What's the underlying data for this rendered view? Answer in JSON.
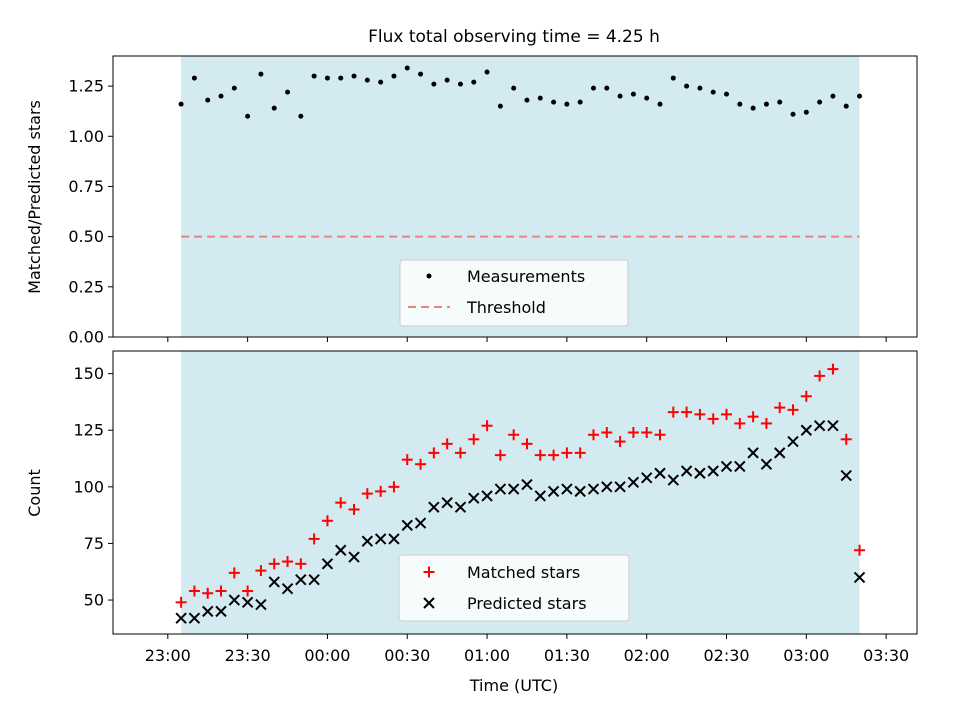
{
  "figure": {
    "title": "Flux total observing time = 4.25 h",
    "xlabel": "Time (UTC)"
  },
  "colors": {
    "shade": "#d3eaf1",
    "threshold": "#f08080",
    "matched": "#ff0000",
    "predicted": "#000000",
    "measurement": "#000000"
  },
  "x_axis": {
    "start_minutes_from_2300": -20.6,
    "end_minutes_from_2300": 281.6,
    "tick_labels": [
      "23:00",
      "23:30",
      "00:00",
      "00:30",
      "01:00",
      "01:30",
      "02:00",
      "02:30",
      "03:00",
      "03:30"
    ]
  },
  "shaded_interval": [
    "23:05",
    "03:20"
  ],
  "chart_data": [
    {
      "type": "scatter",
      "ylabel": "Matched/Predicted stars",
      "ylim": [
        0,
        1.4
      ],
      "yticks": [
        "0.00",
        "0.25",
        "0.50",
        "0.75",
        "1.00",
        "1.25"
      ],
      "legend": {
        "placement": "lower center",
        "entries": [
          "Measurements",
          "Threshold"
        ]
      },
      "threshold": 0.5,
      "threshold_range": [
        "23:05",
        "03:20"
      ],
      "series": [
        {
          "name": "Measurements",
          "x": [
            "23:05",
            "23:10",
            "23:15",
            "23:20",
            "23:25",
            "23:30",
            "23:35",
            "23:40",
            "23:45",
            "23:50",
            "23:55",
            "00:00",
            "00:05",
            "00:10",
            "00:15",
            "00:20",
            "00:25",
            "00:30",
            "00:35",
            "00:40",
            "00:45",
            "00:50",
            "00:55",
            "01:00",
            "01:05",
            "01:10",
            "01:15",
            "01:20",
            "01:25",
            "01:30",
            "01:35",
            "01:40",
            "01:45",
            "01:50",
            "01:55",
            "02:00",
            "02:05",
            "02:10",
            "02:15",
            "02:20",
            "02:25",
            "02:30",
            "02:35",
            "02:40",
            "02:45",
            "02:50",
            "02:55",
            "03:00",
            "03:05",
            "03:10",
            "03:15",
            "03:20"
          ],
          "y": [
            1.16,
            1.29,
            1.18,
            1.2,
            1.24,
            1.1,
            1.31,
            1.14,
            1.22,
            1.1,
            1.3,
            1.29,
            1.29,
            1.3,
            1.28,
            1.27,
            1.3,
            1.34,
            1.31,
            1.26,
            1.28,
            1.26,
            1.27,
            1.32,
            1.15,
            1.24,
            1.18,
            1.19,
            1.17,
            1.16,
            1.17,
            1.24,
            1.24,
            1.2,
            1.21,
            1.19,
            1.16,
            1.29,
            1.25,
            1.24,
            1.22,
            1.21,
            1.16,
            1.14,
            1.16,
            1.17,
            1.11,
            1.12,
            1.17,
            1.2,
            1.15,
            1.2
          ]
        }
      ]
    },
    {
      "type": "scatter",
      "ylabel": "Count",
      "ylim": [
        35,
        160
      ],
      "yticks": [
        "50",
        "75",
        "100",
        "125",
        "150"
      ],
      "legend": {
        "placement": "lower center",
        "entries": [
          "Matched stars",
          "Predicted stars"
        ]
      },
      "series": [
        {
          "name": "Matched stars",
          "x": [
            "23:05",
            "23:10",
            "23:15",
            "23:20",
            "23:25",
            "23:30",
            "23:35",
            "23:40",
            "23:45",
            "23:50",
            "23:55",
            "00:00",
            "00:05",
            "00:10",
            "00:15",
            "00:20",
            "00:25",
            "00:30",
            "00:35",
            "00:40",
            "00:45",
            "00:50",
            "00:55",
            "01:00",
            "01:05",
            "01:10",
            "01:15",
            "01:20",
            "01:25",
            "01:30",
            "01:35",
            "01:40",
            "01:45",
            "01:50",
            "01:55",
            "02:00",
            "02:05",
            "02:10",
            "02:15",
            "02:20",
            "02:25",
            "02:30",
            "02:35",
            "02:40",
            "02:45",
            "02:50",
            "02:55",
            "03:00",
            "03:05",
            "03:10",
            "03:15",
            "03:20"
          ],
          "y": [
            49,
            54,
            53,
            54,
            62,
            54,
            63,
            66,
            67,
            66,
            77,
            85,
            93,
            90,
            97,
            98,
            100,
            112,
            110,
            115,
            119,
            115,
            121,
            127,
            114,
            123,
            119,
            114,
            114,
            115,
            115,
            123,
            124,
            120,
            124,
            124,
            123,
            133,
            133,
            132,
            130,
            132,
            128,
            131,
            128,
            135,
            134,
            140,
            149,
            152,
            121,
            72
          ]
        },
        {
          "name": "Predicted stars",
          "x": [
            "23:05",
            "23:10",
            "23:15",
            "23:20",
            "23:25",
            "23:30",
            "23:35",
            "23:40",
            "23:45",
            "23:50",
            "23:55",
            "00:00",
            "00:05",
            "00:10",
            "00:15",
            "00:20",
            "00:25",
            "00:30",
            "00:35",
            "00:40",
            "00:45",
            "00:50",
            "00:55",
            "01:00",
            "01:05",
            "01:10",
            "01:15",
            "01:20",
            "01:25",
            "01:30",
            "01:35",
            "01:40",
            "01:45",
            "01:50",
            "01:55",
            "02:00",
            "02:05",
            "02:10",
            "02:15",
            "02:20",
            "02:25",
            "02:30",
            "02:35",
            "02:40",
            "02:45",
            "02:50",
            "02:55",
            "03:00",
            "03:05",
            "03:10",
            "03:15",
            "03:20"
          ],
          "y": [
            42,
            42,
            45,
            45,
            50,
            49,
            48,
            58,
            55,
            59,
            59,
            66,
            72,
            69,
            76,
            77,
            77,
            83,
            84,
            91,
            93,
            91,
            95,
            96,
            99,
            99,
            101,
            96,
            98,
            99,
            98,
            99,
            100,
            100,
            102,
            104,
            106,
            103,
            107,
            106,
            107,
            109,
            109,
            115,
            110,
            115,
            120,
            125,
            127,
            127,
            105,
            60
          ]
        }
      ]
    }
  ]
}
